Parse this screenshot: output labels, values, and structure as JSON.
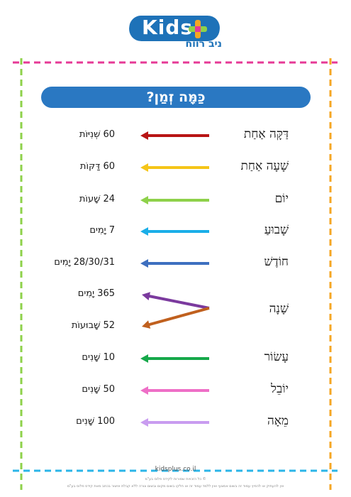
{
  "logo": {
    "brand": "Kids",
    "subtitle": "ניב רווח"
  },
  "title": "כַּמָּה זְמַן?",
  "rows": [
    {
      "term": "דַּקָּה אַחַת",
      "value": "60 שְׁנִיּוֹת",
      "color": "#b81414"
    },
    {
      "term": "שָׁעָה אַחַת",
      "value": "60 דַּקּוֹת",
      "color": "#f5c518"
    },
    {
      "term": "יוֹם",
      "value": "24 שָׁעוֹת",
      "color": "#8ed14a"
    },
    {
      "term": "שָׁבוּעַ",
      "value": "7 יָמִים",
      "color": "#1aaee8"
    },
    {
      "term": "חוֹדֶשׁ",
      "value": "28/30/31 יָמִים",
      "color": "#3d6fbf"
    },
    {
      "term": "שָׁנָה",
      "values": [
        "365 יָמִים",
        "52 שָׁבוּעוֹת"
      ],
      "colors": [
        "#7b3a9e",
        "#c0601e"
      ]
    },
    {
      "term": "עָשׂוֹר",
      "value": "10 שָׁנִים",
      "color": "#16a84a"
    },
    {
      "term": "יוֹבֵל",
      "value": "50 שָׁנִים",
      "color": "#ee6fc7"
    },
    {
      "term": "מֵאָה",
      "value": "100 שָׁנִים",
      "color": "#c99cf0"
    }
  ],
  "footer": {
    "url": "kidsplus.co.il",
    "line1": "© כל הזכויות שמורות לקידס פלוס בע\"מ",
    "line2": "אין להעתיק או להפיץ עמוד זה בשום אמצעי ואין ללמד עמוד זה או חלקו בשום מקום ובשום צורה ללא קבלת אישור בכתב מאת קידס פלוס בע\"מ"
  },
  "border_colors": {
    "top": "#e63996",
    "bottom": "#2bb5e8",
    "left": "#8ed14a",
    "right": "#f5a623",
    "pattern_alt": "#2bb5e8"
  }
}
